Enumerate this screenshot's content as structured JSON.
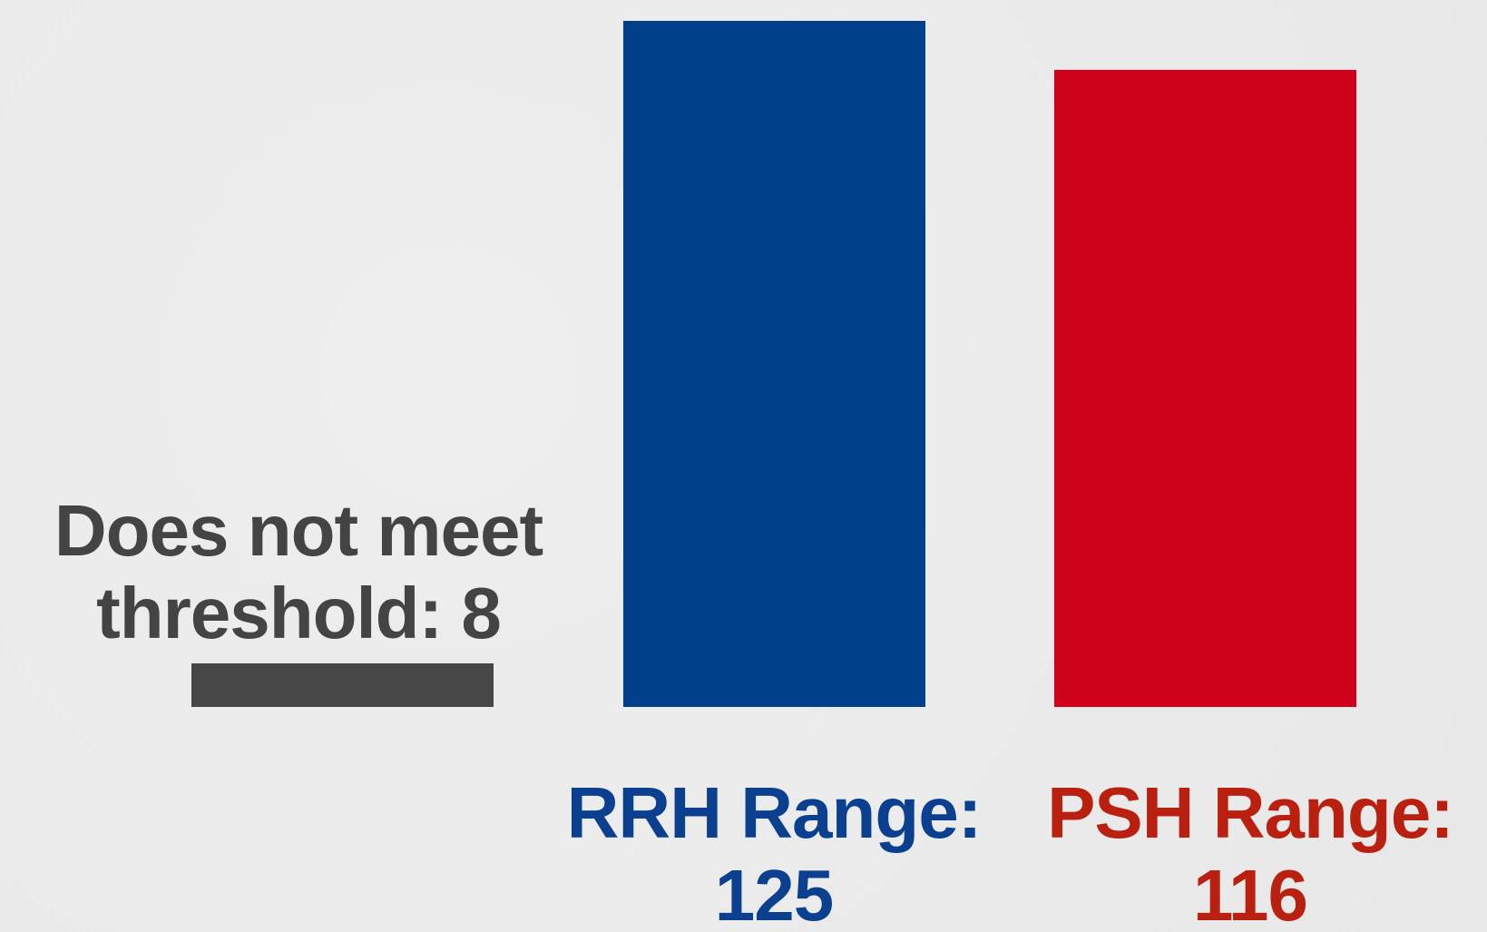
{
  "chart_data": {
    "type": "bar",
    "categories": [
      "Does not meet threshold:",
      "RRH Range:",
      "PSH Range:"
    ],
    "values": [
      8,
      125,
      116
    ],
    "colors": [
      "#464646",
      "#003f8a",
      "#d0021b"
    ],
    "label_colors": [
      "#444444",
      "#0b3f90",
      "#b9200f"
    ]
  }
}
